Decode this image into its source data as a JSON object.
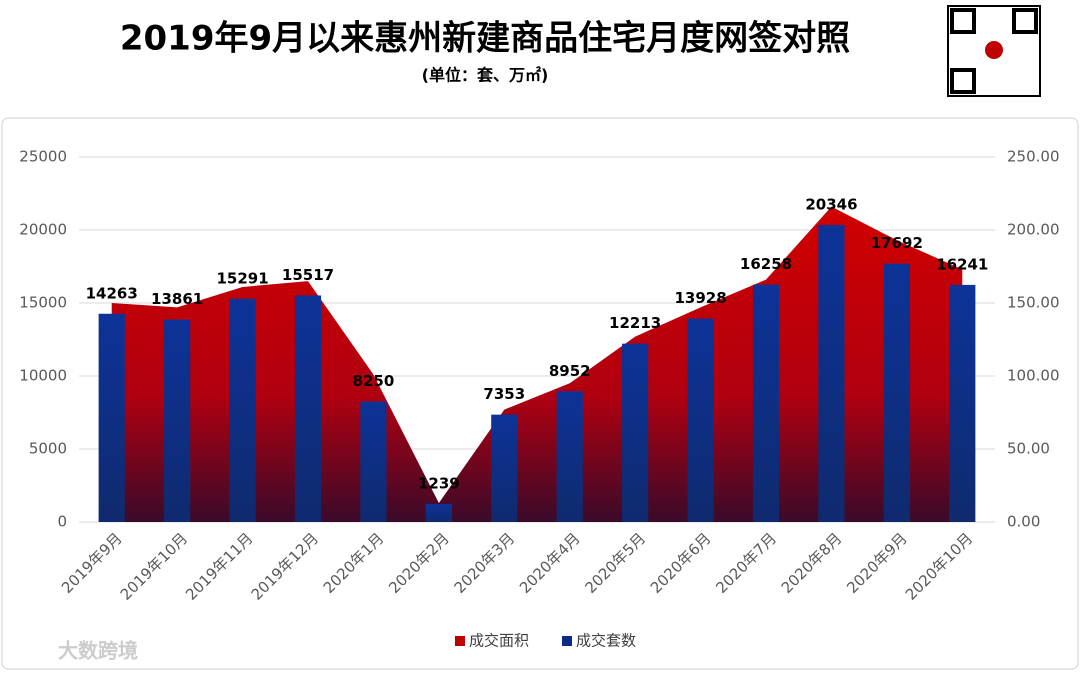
{
  "chart_data": {
    "type": "combo",
    "title": "2019年9月以来惠州新建商品住宅月度网签对照",
    "subtitle": "(单位：套、万㎡)",
    "categories": [
      "2019年9月",
      "2019年10月",
      "2019年11月",
      "2019年12月",
      "2020年1月",
      "2020年2月",
      "2020年3月",
      "2020年4月",
      "2020年5月",
      "2020年6月",
      "2020年7月",
      "2020年8月",
      "2020年9月",
      "2020年10月"
    ],
    "series": [
      {
        "name": "成交面积",
        "type": "area",
        "axis": "y2",
        "color": "#c00000",
        "values": [
          150,
          147,
          161,
          165,
          101,
          13,
          77,
          95,
          127,
          147,
          166,
          216,
          193,
          173
        ]
      },
      {
        "name": "成交套数",
        "type": "bar",
        "color": "#0d2a8a",
        "values": [
          14263,
          13861,
          15291,
          15517,
          8250,
          1239,
          7353,
          8952,
          12213,
          13928,
          16258,
          20346,
          17692,
          16241
        ]
      }
    ],
    "ylim": [
      0,
      25000
    ],
    "yticks": [
      0,
      5000,
      10000,
      15000,
      20000,
      25000
    ],
    "y2lim": [
      0,
      250
    ],
    "y2ticks": [
      {
        "value": 0,
        "label": "0.00"
      },
      {
        "value": 50,
        "label": "50.00"
      },
      {
        "value": 100,
        "label": "100.00"
      },
      {
        "value": 150,
        "label": "150.00"
      },
      {
        "value": 200,
        "label": "200.00"
      },
      {
        "value": 250,
        "label": "250.00"
      }
    ],
    "grid": true,
    "legend": "bottom"
  },
  "brand": "大数跨境"
}
